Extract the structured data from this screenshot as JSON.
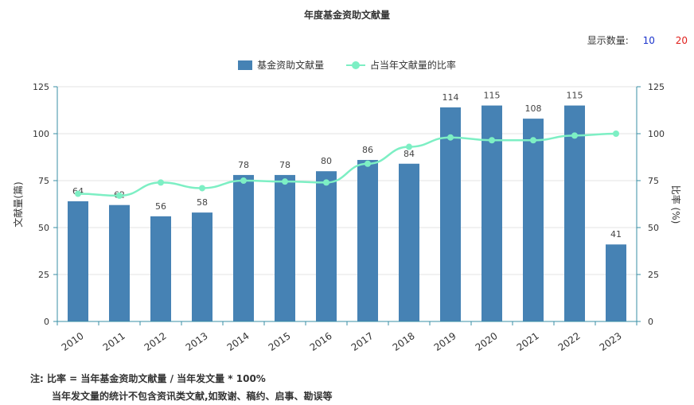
{
  "title": "年度基金资助文献量",
  "display_count": {
    "label": "显示数量:",
    "options": [
      "10",
      "20"
    ]
  },
  "legend": {
    "bar_label": "基金资助文献量",
    "line_label": "占当年文献量的比率"
  },
  "colors": {
    "bar": "#4682b4",
    "line": "#7defc4",
    "opt10": "#1a33cc",
    "opt20": "#e0201c"
  },
  "notes": {
    "line1": "注:  比率 = 当年基金资助文献量 / 当年发文量 * 100%",
    "line2": "当年发文量的统计不包含资讯类文献,如致谢、稿约、启事、勘误等"
  },
  "chart_data": {
    "type": "bar",
    "categories": [
      "2010",
      "2011",
      "2012",
      "2013",
      "2014",
      "2015",
      "2016",
      "2017",
      "2018",
      "2019",
      "2020",
      "2021",
      "2022",
      "2023"
    ],
    "series": [
      {
        "name": "基金资助文献量",
        "type": "bar",
        "axis": "left",
        "values": [
          64,
          62,
          56,
          58,
          78,
          78,
          80,
          86,
          84,
          114,
          115,
          108,
          115,
          41
        ]
      },
      {
        "name": "占当年文献量的比率",
        "type": "line",
        "axis": "right",
        "values": [
          68,
          67,
          74,
          71,
          75,
          74.5,
          74,
          84,
          93,
          98,
          96.5,
          96.5,
          99,
          100
        ]
      }
    ],
    "ylabel": "文献量(篇)",
    "y2label": "比率 (%)",
    "ylim": [
      0,
      125
    ],
    "y2lim": [
      0,
      125
    ],
    "yticks": [
      0,
      25,
      50,
      75,
      100,
      125
    ],
    "y2ticks": [
      0,
      25,
      50,
      75,
      100,
      125
    ]
  }
}
